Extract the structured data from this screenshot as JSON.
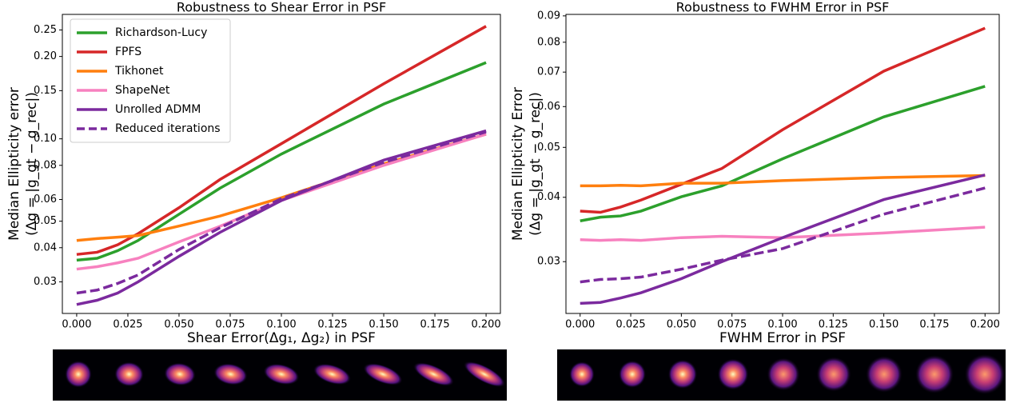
{
  "chart_data": [
    {
      "type": "line",
      "title": "Robustness to Shear Error in PSF",
      "xlabel": "Shear Error(Δg₁, Δg₂) in PSF",
      "ylabel": [
        "Median Ellipticity error",
        "(Δg = |g_gt − g_rec|)"
      ],
      "yscale": "log",
      "legend": "upper left",
      "x": [
        0,
        0.01,
        0.02,
        0.03,
        0.05,
        0.07,
        0.1,
        0.15,
        0.2
      ],
      "xlim": [
        -0.007,
        0.207
      ],
      "xticks": [
        {
          "value": 0,
          "label": "0.000"
        },
        {
          "value": 0.025,
          "label": "0.025"
        },
        {
          "value": 0.05,
          "label": "0.050"
        },
        {
          "value": 0.075,
          "label": "0.075"
        },
        {
          "value": 0.1,
          "label": "0.100"
        },
        {
          "value": 0.125,
          "label": "0.125"
        },
        {
          "value": 0.15,
          "label": "0.150"
        },
        {
          "value": 0.175,
          "label": "0.175"
        },
        {
          "value": 0.2,
          "label": "0.200"
        }
      ],
      "ylim": [
        0.023,
        0.285
      ],
      "yticks": [
        0.03,
        0.04,
        0.05,
        0.06,
        0.08,
        {
          "value": 0.1,
          "label": "0.10"
        },
        0.15,
        {
          "value": 0.2,
          "label": "0.20"
        },
        0.25
      ],
      "series": [
        {
          "name": "Richardson-Lucy",
          "color": "#2ca02c",
          "linestyle": "solid",
          "values": [
            0.036,
            0.0366,
            0.039,
            0.0425,
            0.053,
            0.066,
            0.088,
            0.134,
            0.19
          ]
        },
        {
          "name": "FPFS",
          "color": "#d62728",
          "linestyle": "solid",
          "values": [
            0.0378,
            0.0385,
            0.041,
            0.045,
            0.056,
            0.071,
            0.096,
            0.159,
            0.258
          ]
        },
        {
          "name": "Tikhonet",
          "color": "#ff7f0e",
          "linestyle": "solid",
          "values": [
            0.0425,
            0.0432,
            0.0437,
            0.0443,
            0.048,
            0.0522,
            0.0609,
            0.081,
            0.104
          ]
        },
        {
          "name": "ShapeNet",
          "color": "#f781bf",
          "linestyle": "solid",
          "values": [
            0.0334,
            0.0341,
            0.0352,
            0.0366,
            0.042,
            0.0479,
            0.0595,
            0.08,
            0.104
          ]
        },
        {
          "name": "Unrolled ADMM",
          "color": "#7b2a9e",
          "linestyle": "solid",
          "values": [
            0.0248,
            0.0257,
            0.0273,
            0.03,
            0.0372,
            0.0455,
            0.0595,
            0.0836,
            0.107
          ]
        },
        {
          "name": "Reduced iterations",
          "color": "#7b2a9e",
          "linestyle": "dashed",
          "values": [
            0.0273,
            0.028,
            0.0296,
            0.0318,
            0.0394,
            0.0473,
            0.0604,
            0.082,
            0.106
          ]
        }
      ]
    },
    {
      "type": "line",
      "title": "Robustness to FWHM Error in PSF",
      "xlabel": "FWHM Error in PSF",
      "ylabel": [
        "Median Ellipticity Error",
        "(Δg = |g_gt − g_rec|)"
      ],
      "yscale": "log",
      "x": [
        0,
        0.01,
        0.02,
        0.03,
        0.05,
        0.07,
        0.1,
        0.15,
        0.2
      ],
      "xlim": [
        -0.007,
        0.207
      ],
      "xticks": [
        {
          "value": 0,
          "label": "0.000"
        },
        {
          "value": 0.025,
          "label": "0.025"
        },
        {
          "value": 0.05,
          "label": "0.050"
        },
        {
          "value": 0.075,
          "label": "0.075"
        },
        {
          "value": 0.1,
          "label": "0.100"
        },
        {
          "value": 0.125,
          "label": "0.125"
        },
        {
          "value": 0.15,
          "label": "0.150"
        },
        {
          "value": 0.175,
          "label": "0.175"
        },
        {
          "value": 0.2,
          "label": "0.200"
        }
      ],
      "ylim": [
        0.0238,
        0.0906
      ],
      "yticks": [
        0.03,
        0.04,
        0.05,
        0.06,
        0.07,
        0.08,
        0.09
      ],
      "series": [
        {
          "color": "#2ca02c",
          "linestyle": "solid",
          "values": [
            0.036,
            0.0366,
            0.0368,
            0.0376,
            0.0401,
            0.0421,
            0.0475,
            0.0573,
            0.0657
          ]
        },
        {
          "color": "#d62728",
          "linestyle": "solid",
          "values": [
            0.0376,
            0.0374,
            0.0383,
            0.0395,
            0.0424,
            0.0455,
            0.0541,
            0.0703,
            0.0852
          ]
        },
        {
          "color": "#ff7f0e",
          "linestyle": "solid",
          "values": [
            0.0421,
            0.0421,
            0.0422,
            0.0421,
            0.0426,
            0.0426,
            0.0431,
            0.0437,
            0.0441
          ]
        },
        {
          "color": "#f781bf",
          "linestyle": "solid",
          "values": [
            0.0331,
            0.033,
            0.0331,
            0.033,
            0.0334,
            0.0336,
            0.0334,
            0.0341,
            0.035
          ]
        },
        {
          "color": "#7b2a9e",
          "linestyle": "solid",
          "values": [
            0.0249,
            0.025,
            0.0255,
            0.0261,
            0.0278,
            0.03,
            0.0334,
            0.0396,
            0.0442
          ]
        },
        {
          "color": "#7b2a9e",
          "linestyle": "dashed",
          "values": [
            0.0274,
            0.0277,
            0.0278,
            0.028,
            0.029,
            0.0302,
            0.0318,
            0.0371,
            0.0417
          ]
        }
      ]
    }
  ]
}
